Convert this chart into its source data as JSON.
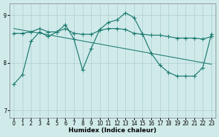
{
  "bg_color": "#d0eaea",
  "grid_color": "#a8cccc",
  "line_color": "#1a7a6e",
  "xlabel": "Humidex (Indice chaleur)",
  "ylim": [
    6.85,
    9.25
  ],
  "xlim": [
    -0.5,
    23.5
  ],
  "yticks": [
    7,
    8,
    9
  ],
  "xticks": [
    0,
    1,
    2,
    3,
    4,
    5,
    6,
    7,
    8,
    9,
    10,
    11,
    12,
    13,
    14,
    15,
    16,
    17,
    18,
    19,
    20,
    21,
    22,
    23
  ],
  "line1_x": [
    0,
    1,
    2,
    3,
    4,
    5,
    6,
    7,
    8,
    9,
    10,
    11,
    12,
    13,
    14,
    15,
    16,
    17,
    18,
    19,
    20,
    21,
    22,
    23
  ],
  "line1_y": [
    8.62,
    8.62,
    8.65,
    8.72,
    8.65,
    8.65,
    8.72,
    8.62,
    8.6,
    8.6,
    8.68,
    8.72,
    8.72,
    8.7,
    8.62,
    8.6,
    8.58,
    8.58,
    8.55,
    8.52,
    8.52,
    8.52,
    8.5,
    8.55
  ],
  "line2_x": [
    0,
    1,
    2,
    3,
    4,
    5,
    6,
    7,
    8,
    9,
    10,
    11,
    12,
    13,
    14,
    15,
    16,
    17,
    18,
    19,
    20,
    21,
    22,
    23
  ],
  "line2_y": [
    7.55,
    7.75,
    8.45,
    8.65,
    8.55,
    8.65,
    8.8,
    8.5,
    7.85,
    8.3,
    8.7,
    8.85,
    8.9,
    9.05,
    8.95,
    8.6,
    8.2,
    7.95,
    7.8,
    7.72,
    7.72,
    7.72,
    7.9,
    8.6
  ],
  "trend_x": [
    0,
    23
  ],
  "trend_y": [
    8.72,
    7.97
  ],
  "line1_lw": 0.9,
  "line2_lw": 0.9,
  "trend_lw": 0.8,
  "marker_size": 2.5
}
